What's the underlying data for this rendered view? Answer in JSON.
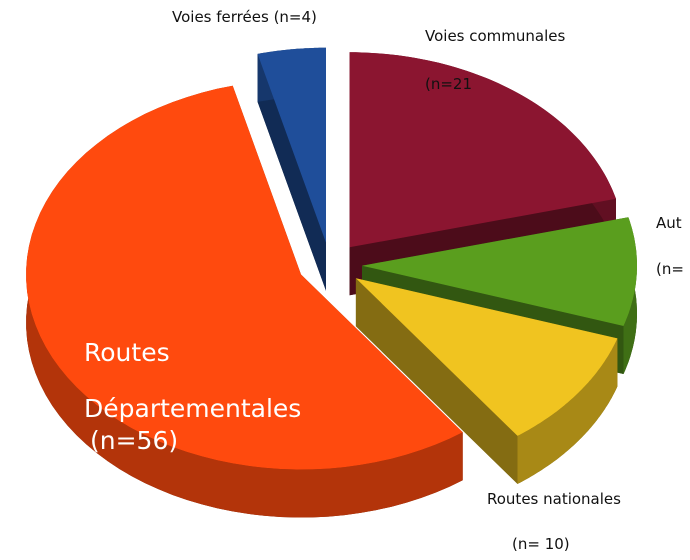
{
  "chart_data": {
    "type": "pie",
    "categories": [
      "Voies communales",
      "Aut",
      "Routes nationales",
      "Routes Départementales",
      "Voies ferrées"
    ],
    "values": [
      21,
      9,
      10,
      56,
      4
    ],
    "value_labels": [
      "(n=21",
      "(n=",
      "(n= 10)",
      "(n=56)",
      "(n=4)"
    ],
    "colors": [
      "#8b1530",
      "#5a9e1e",
      "#f0c420",
      "#ff4a0e",
      "#1f4e9a"
    ]
  }
}
